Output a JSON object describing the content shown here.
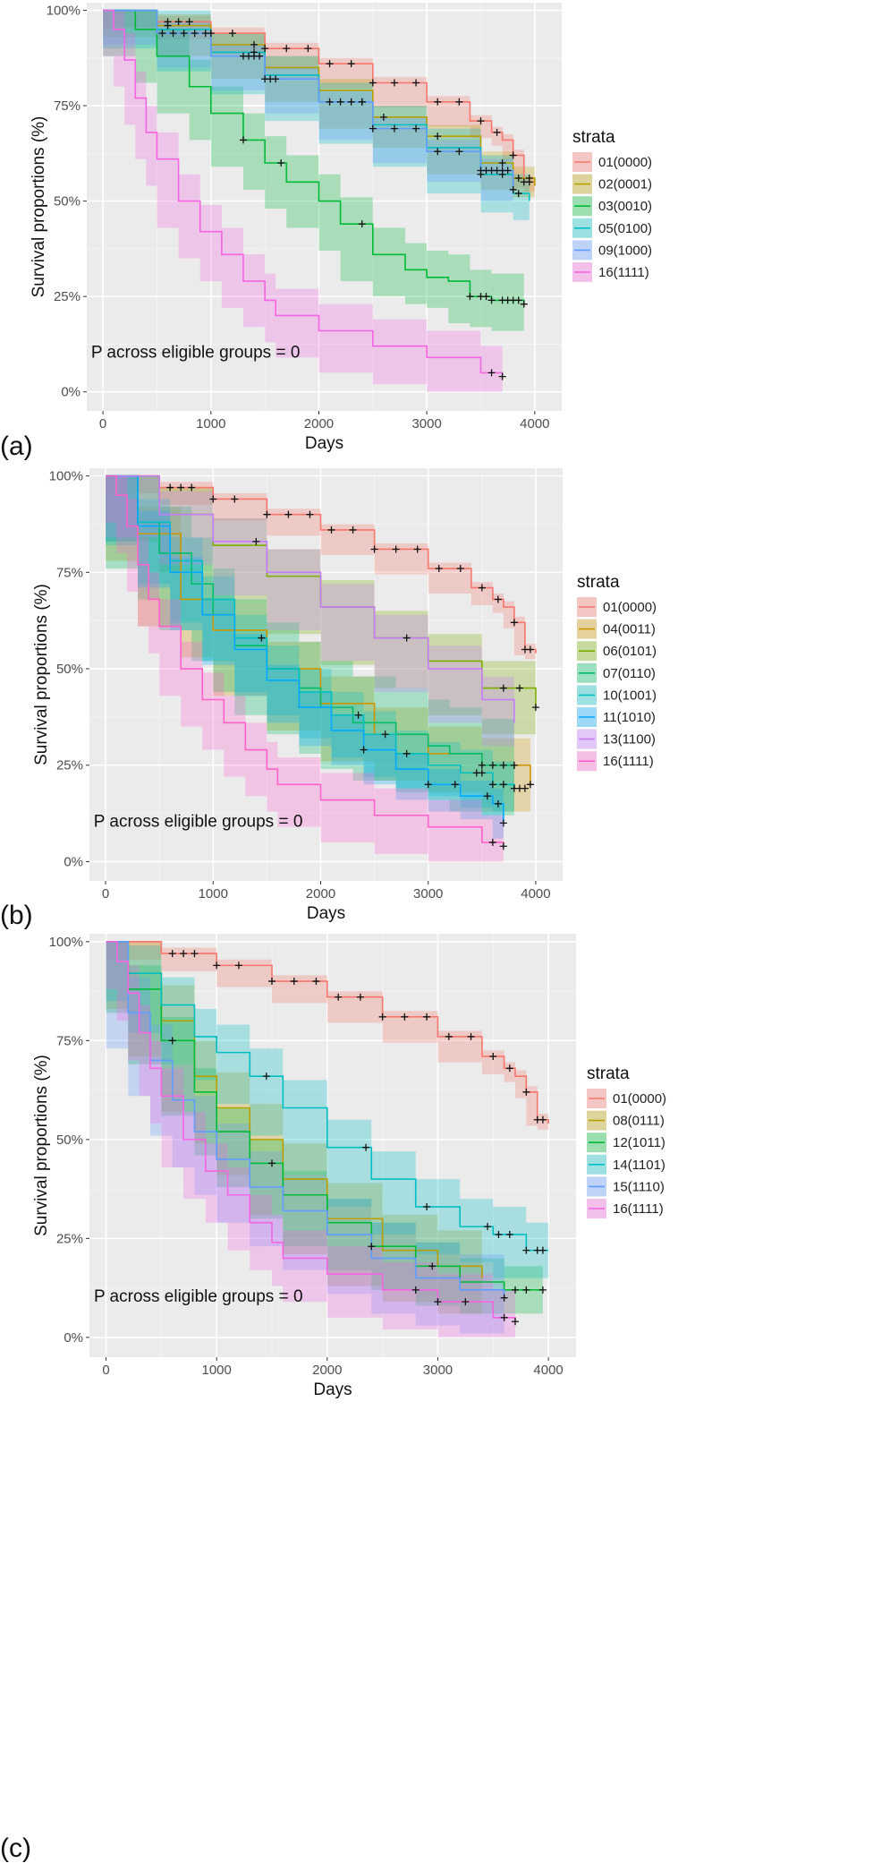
{
  "figure": {
    "panel_letters": [
      "(a)",
      "(b)",
      "(c)"
    ]
  },
  "chart_data": [
    {
      "type": "line",
      "panel": "(a)",
      "xlabel": "Days",
      "ylabel": "Survival proportions (%)",
      "xlim": [
        -150,
        4250
      ],
      "ylim": [
        -5,
        102
      ],
      "x_ticks": [
        0,
        1000,
        2000,
        3000,
        4000
      ],
      "y_ticks": [
        0,
        25,
        50,
        75,
        100
      ],
      "y_tick_labels": [
        "0%",
        "25%",
        "50%",
        "75%",
        "100%"
      ],
      "legend_title": "strata",
      "legend_position": "right",
      "annotation": "P across eligible groups = 0",
      "series": [
        {
          "name": "01(0000)",
          "color": "#F8766D",
          "band": 1.5,
          "x": [
            0,
            500,
            1000,
            1500,
            2000,
            2500,
            3000,
            3400,
            3600,
            3700,
            3800,
            3900,
            4000
          ],
          "y": [
            100,
            97,
            94,
            90,
            86,
            81,
            76,
            71,
            68,
            66,
            62,
            55,
            54
          ],
          "censor": [
            600,
            700,
            800,
            1000,
            1200,
            1500,
            1700,
            1900,
            2100,
            2300,
            2500,
            2700,
            2900,
            3100,
            3300,
            3500,
            3650,
            3800,
            3900,
            3950
          ]
        },
        {
          "name": "02(0001)",
          "color": "#B79F00",
          "band": 3,
          "x": [
            0,
            500,
            1000,
            1500,
            2000,
            2500,
            3000,
            3500,
            3800,
            4000
          ],
          "y": [
            100,
            96,
            91,
            85,
            79,
            72,
            67,
            60,
            56,
            54
          ],
          "censor": [
            600,
            1400,
            2600,
            3100,
            3700,
            3850,
            3950
          ]
        },
        {
          "name": "03(0010)",
          "color": "#00BA38",
          "band": 7,
          "x": [
            0,
            300,
            500,
            800,
            1000,
            1300,
            1500,
            1700,
            2000,
            2200,
            2500,
            2800,
            3000,
            3200,
            3400,
            3600,
            3900
          ],
          "y": [
            100,
            95,
            88,
            80,
            73,
            66,
            60,
            55,
            50,
            44,
            36,
            32,
            30,
            29,
            25,
            24,
            23
          ],
          "censor": [
            1300,
            1650,
            2400,
            3400,
            3500,
            3550,
            3600,
            3700,
            3750,
            3800,
            3850,
            3900
          ]
        },
        {
          "name": "05(0100)",
          "color": "#00BFC4",
          "band": 5,
          "x": [
            0,
            500,
            1000,
            1500,
            2000,
            2500,
            3000,
            3500,
            3800,
            3950
          ],
          "y": [
            100,
            95,
            89,
            83,
            76,
            70,
            64,
            57,
            52,
            50
          ],
          "censor": [
            1400,
            2400,
            3500,
            3700,
            3850
          ]
        },
        {
          "name": "09(1000)",
          "color": "#619CFF",
          "band": 3,
          "x": [
            0,
            500,
            1000,
            1500,
            2000,
            2500,
            3000,
            3500,
            3800
          ],
          "y": [
            100,
            94,
            88,
            82,
            76,
            69,
            63,
            58,
            53
          ],
          "censor": [
            550,
            650,
            750,
            850,
            950,
            1300,
            1350,
            1400,
            1450,
            1500,
            1550,
            1600,
            2100,
            2200,
            2300,
            2400,
            2500,
            2700,
            2900,
            3100,
            3300,
            3500,
            3550,
            3600,
            3650,
            3700,
            3750,
            3800
          ]
        },
        {
          "name": "16(1111)",
          "color": "#F564E3",
          "band": 7,
          "x": [
            0,
            100,
            200,
            300,
            400,
            500,
            700,
            900,
            1100,
            1300,
            1500,
            1600,
            2000,
            2500,
            3000,
            3500,
            3700
          ],
          "y": [
            100,
            95,
            87,
            77,
            68,
            61,
            50,
            42,
            36,
            29,
            24,
            20,
            16,
            12,
            9,
            5,
            4
          ],
          "censor": [
            3600,
            3700
          ]
        }
      ]
    },
    {
      "type": "line",
      "panel": "(b)",
      "xlabel": "Days",
      "ylabel": "Survival proportions (%)",
      "xlim": [
        -150,
        4250
      ],
      "ylim": [
        -5,
        102
      ],
      "x_ticks": [
        0,
        1000,
        2000,
        3000,
        4000
      ],
      "y_ticks": [
        0,
        25,
        50,
        75,
        100
      ],
      "y_tick_labels": [
        "0%",
        "25%",
        "50%",
        "75%",
        "100%"
      ],
      "legend_title": "strata",
      "legend_position": "right",
      "annotation": "P across eligible groups = 0",
      "series": [
        {
          "name": "01(0000)",
          "color": "#F8766D",
          "band": 1.5,
          "x": [
            0,
            500,
            1000,
            1500,
            2000,
            2500,
            3000,
            3400,
            3600,
            3700,
            3800,
            3900,
            4000
          ],
          "y": [
            100,
            97,
            94,
            90,
            86,
            81,
            76,
            71,
            68,
            66,
            62,
            55,
            54
          ],
          "censor": [
            600,
            700,
            800,
            1000,
            1200,
            1500,
            1700,
            1900,
            2100,
            2300,
            2500,
            2700,
            2900,
            3100,
            3300,
            3500,
            3650,
            3800,
            3900,
            3950
          ]
        },
        {
          "name": "04(0011)",
          "color": "#CD9600",
          "band": 7,
          "x": [
            0,
            300,
            700,
            1000,
            1500,
            2000,
            2500,
            3000,
            3500,
            3950
          ],
          "y": [
            100,
            85,
            68,
            60,
            50,
            41,
            33,
            28,
            25,
            20
          ],
          "censor": [
            3700,
            3800,
            3950
          ]
        },
        {
          "name": "06(0101)",
          "color": "#7CAE00",
          "band": 7,
          "x": [
            0,
            500,
            1000,
            1500,
            2000,
            2500,
            3000,
            3500,
            4000
          ],
          "y": [
            100,
            90,
            82,
            74,
            66,
            58,
            52,
            45,
            40
          ],
          "censor": [
            3700,
            3850,
            4000
          ]
        },
        {
          "name": "07(0110)",
          "color": "#00BE67",
          "band": 12,
          "x": [
            0,
            300,
            500,
            800,
            1000,
            1200,
            1500,
            1800,
            2000,
            2300,
            2700,
            3000,
            3200,
            3500,
            3800
          ],
          "y": [
            100,
            88,
            80,
            72,
            64,
            56,
            50,
            45,
            40,
            36,
            33,
            30,
            28,
            25,
            24
          ],
          "censor": [
            3500,
            3600
          ]
        },
        {
          "name": "10(1001)",
          "color": "#00BFC4",
          "band": 6,
          "x": [
            0,
            300,
            600,
            900,
            1200,
            1500,
            1800,
            2100,
            2400,
            2700,
            3000,
            3300,
            3600,
            3800
          ],
          "y": [
            100,
            88,
            78,
            68,
            58,
            50,
            44,
            38,
            33,
            28,
            25,
            23,
            20,
            19
          ],
          "censor": [
            1450,
            2350,
            2600,
            2800,
            3450,
            3500,
            3600,
            3700,
            3800,
            3850,
            3900
          ]
        },
        {
          "name": "11(1010)",
          "color": "#00A9FF",
          "band": 4,
          "x": [
            0,
            300,
            600,
            900,
            1200,
            1500,
            1800,
            2100,
            2400,
            2700,
            3000,
            3300,
            3600,
            3700
          ],
          "y": [
            100,
            87,
            75,
            64,
            55,
            47,
            40,
            34,
            29,
            24,
            20,
            17,
            15,
            10
          ],
          "censor": [
            2400,
            3000,
            3250,
            3550,
            3650,
            3700
          ]
        },
        {
          "name": "13(1100)",
          "color": "#C77CFF",
          "band": 6,
          "x": [
            0,
            500,
            1000,
            1500,
            2000,
            2500,
            3000,
            3500,
            3800
          ],
          "y": [
            100,
            90,
            83,
            75,
            66,
            58,
            50,
            42,
            36
          ],
          "censor": [
            1400,
            2800
          ]
        },
        {
          "name": "16(1111)",
          "color": "#FF61CC",
          "band": 7,
          "x": [
            0,
            100,
            200,
            300,
            400,
            500,
            700,
            900,
            1100,
            1300,
            1500,
            1600,
            2000,
            2500,
            3000,
            3500,
            3700
          ],
          "y": [
            100,
            95,
            87,
            77,
            68,
            61,
            50,
            42,
            36,
            29,
            24,
            20,
            16,
            12,
            9,
            5,
            4
          ],
          "censor": [
            3600,
            3700
          ]
        }
      ]
    },
    {
      "type": "line",
      "panel": "(c)",
      "xlabel": "Days",
      "ylabel": "Survival proportions (%)",
      "xlim": [
        -150,
        4250
      ],
      "ylim": [
        -5,
        102
      ],
      "x_ticks": [
        0,
        1000,
        2000,
        3000,
        4000
      ],
      "y_ticks": [
        0,
        25,
        50,
        75,
        100
      ],
      "y_tick_labels": [
        "0%",
        "25%",
        "50%",
        "75%",
        "100%"
      ],
      "legend_title": "strata",
      "legend_position": "right",
      "annotation": "P across eligible groups = 0",
      "series": [
        {
          "name": "01(0000)",
          "color": "#F8766D",
          "band": 1.5,
          "x": [
            0,
            500,
            1000,
            1500,
            2000,
            2500,
            3000,
            3400,
            3600,
            3700,
            3800,
            3900,
            4000
          ],
          "y": [
            100,
            97,
            94,
            90,
            86,
            81,
            76,
            71,
            68,
            66,
            62,
            55,
            54
          ],
          "censor": [
            600,
            700,
            800,
            1000,
            1200,
            1500,
            1700,
            1900,
            2100,
            2300,
            2500,
            2700,
            2900,
            3100,
            3300,
            3500,
            3650,
            3800,
            3900,
            3950
          ]
        },
        {
          "name": "08(0111)",
          "color": "#B79F00",
          "band": 9,
          "x": [
            0,
            200,
            500,
            800,
            1000,
            1300,
            1600,
            2000,
            2500,
            3000,
            3400
          ],
          "y": [
            100,
            92,
            80,
            66,
            58,
            50,
            40,
            30,
            22,
            18,
            15
          ],
          "censor": []
        },
        {
          "name": "12(1011)",
          "color": "#00BA38",
          "band": 6,
          "x": [
            0,
            200,
            500,
            800,
            1000,
            1300,
            1600,
            2000,
            2400,
            2800,
            3200,
            3600,
            3950
          ],
          "y": [
            100,
            88,
            75,
            62,
            52,
            44,
            36,
            29,
            23,
            18,
            14,
            12,
            12
          ],
          "censor": [
            600,
            1500,
            2400,
            2950,
            3700,
            3800,
            3950
          ]
        },
        {
          "name": "14(1101)",
          "color": "#00BFC4",
          "band": 7,
          "x": [
            0,
            200,
            500,
            800,
            1000,
            1300,
            1600,
            2000,
            2400,
            2800,
            3200,
            3500,
            3800,
            4000
          ],
          "y": [
            100,
            92,
            84,
            76,
            72,
            66,
            58,
            48,
            40,
            33,
            28,
            26,
            22,
            22
          ],
          "censor": [
            1450,
            2350,
            2900,
            3450,
            3550,
            3650,
            3800,
            3900,
            3950
          ]
        },
        {
          "name": "15(1110)",
          "color": "#619CFF",
          "band": 9,
          "x": [
            0,
            200,
            400,
            600,
            800,
            1000,
            1300,
            1600,
            2000,
            2400,
            2800,
            3200,
            3600
          ],
          "y": [
            100,
            82,
            70,
            60,
            52,
            45,
            38,
            32,
            26,
            20,
            15,
            12,
            10
          ],
          "censor": [
            3600
          ]
        },
        {
          "name": "16(1111)",
          "color": "#F564E3",
          "band": 7,
          "x": [
            0,
            100,
            200,
            300,
            400,
            500,
            700,
            900,
            1100,
            1300,
            1500,
            1600,
            2000,
            2500,
            3000,
            3500,
            3700
          ],
          "y": [
            100,
            95,
            87,
            77,
            68,
            61,
            50,
            42,
            36,
            29,
            24,
            20,
            16,
            12,
            9,
            5,
            4
          ],
          "censor": [
            2800,
            3000,
            3250,
            3600,
            3700
          ]
        }
      ]
    }
  ]
}
